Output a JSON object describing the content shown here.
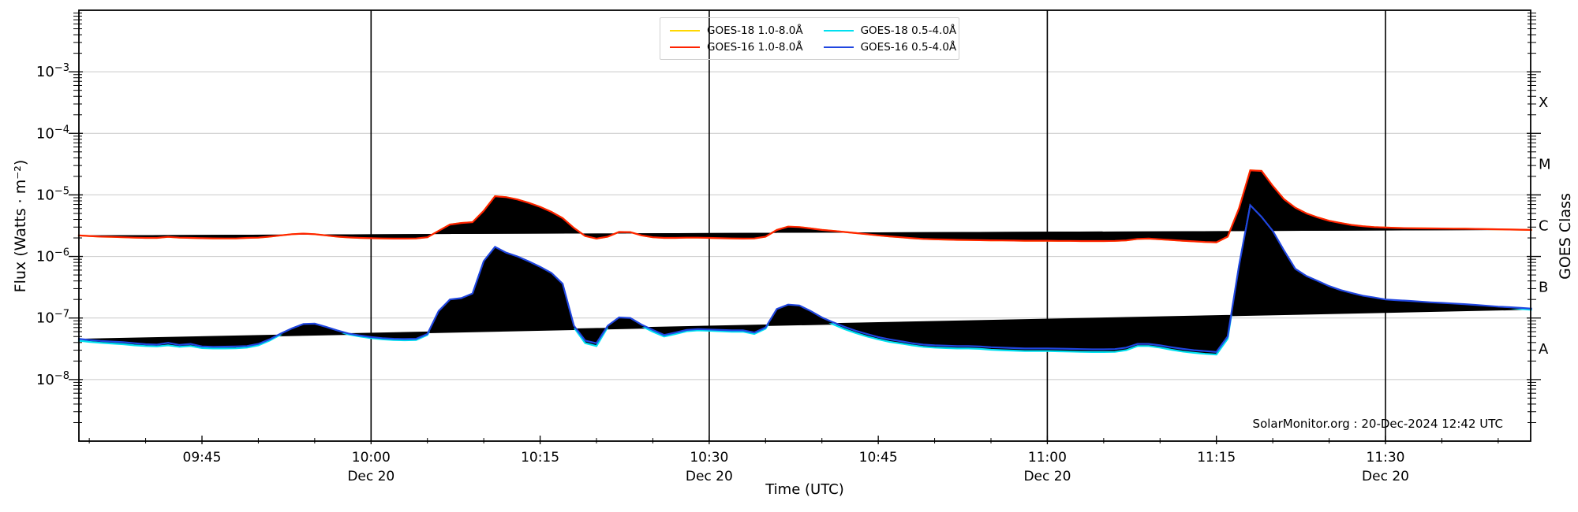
{
  "chart_data": {
    "type": "line",
    "xlabel": "Time (UTC)",
    "ylabel": "Flux (Watts · m⁻²)",
    "ylabel_right": "GOES Class",
    "annotation": "SolarMonitor.org : 20-Dec-2024 12:42 UTC",
    "x_start_time": "09:34",
    "x_end_time": "11:43",
    "step_minutes": 1,
    "x_ticks": [
      {
        "time": "09:45"
      },
      {
        "time": "10:00",
        "day": "Dec 20"
      },
      {
        "time": "10:15"
      },
      {
        "time": "10:30",
        "day": "Dec 20"
      },
      {
        "time": "10:45"
      },
      {
        "time": "11:00",
        "day": "Dec 20"
      },
      {
        "time": "11:15"
      },
      {
        "time": "11:30",
        "day": "Dec 20"
      }
    ],
    "x_minor_step_minutes": 5,
    "vertical_lines": [
      "10:00",
      "10:30",
      "11:00",
      "11:30"
    ],
    "y_log_top_exponent": -2,
    "y_log_bottom_exponent": -9,
    "y_major_tick_exponents": [
      -3,
      -4,
      -5,
      -6,
      -7,
      -8
    ],
    "goes_class_labels": [
      {
        "label": "X",
        "exponent": -3.5
      },
      {
        "label": "M",
        "exponent": -4.5
      },
      {
        "label": "C",
        "exponent": -5.5
      },
      {
        "label": "B",
        "exponent": -6.5
      },
      {
        "label": "A",
        "exponent": -7.5
      }
    ],
    "grid_color": "#c9c9c9",
    "axis_color": "#000000",
    "legend": [
      {
        "label": "GOES-18 1.0-8.0Å",
        "color": "#ffd700"
      },
      {
        "label": "GOES-16 1.0-8.0Å",
        "color": "#ff2200"
      },
      {
        "label": "GOES-18 0.5-4.0Å",
        "color": "#00e0f0"
      },
      {
        "label": "GOES-16 0.5-4.0Å",
        "color": "#2046e0"
      }
    ],
    "series": [
      {
        "name": "GOES-18 1.0-8.0Å",
        "color": "#ffd700",
        "values": [
          2.2e-06,
          2.15e-06,
          2.1e-06,
          2.08e-06,
          2.05e-06,
          2.02e-06,
          2e-06,
          2e-06,
          2.08e-06,
          2.02e-06,
          2e-06,
          1.98e-06,
          1.97e-06,
          1.96e-06,
          1.96e-06,
          2e-06,
          2.02e-06,
          2.1e-06,
          2.2e-06,
          2.3e-06,
          2.35e-06,
          2.3e-06,
          2.2e-06,
          2.1e-06,
          2.04e-06,
          2e-06,
          1.98e-06,
          1.96e-06,
          1.95e-06,
          1.95e-06,
          1.96e-06,
          2.05e-06,
          2.6e-06,
          3.3e-06,
          3.5e-06,
          3.6e-06,
          5.5e-06,
          9.5e-06,
          9.2e-06,
          8.4e-06,
          7.4e-06,
          6.4e-06,
          5.3e-06,
          4.2e-06,
          2.9e-06,
          2.15e-06,
          1.95e-06,
          2.1e-06,
          2.5e-06,
          2.48e-06,
          2.2e-06,
          2.05e-06,
          2e-06,
          2e-06,
          2.02e-06,
          2.02e-06,
          2e-06,
          1.98e-06,
          1.96e-06,
          1.95e-06,
          1.96e-06,
          2.1e-06,
          2.7e-06,
          3.05e-06,
          3e-06,
          2.85e-06,
          2.7e-06,
          2.6e-06,
          2.5e-06,
          2.4e-06,
          2.3e-06,
          2.2e-06,
          2.12e-06,
          2.05e-06,
          1.98e-06,
          1.93e-06,
          1.9e-06,
          1.88e-06,
          1.86e-06,
          1.85e-06,
          1.84e-06,
          1.83e-06,
          1.82e-06,
          1.81e-06,
          1.8e-06,
          1.8e-06,
          1.8e-06,
          1.79e-06,
          1.79e-06,
          1.78e-06,
          1.78e-06,
          1.78e-06,
          1.79e-06,
          1.82e-06,
          1.93e-06,
          1.95e-06,
          1.9e-06,
          1.85e-06,
          1.8e-06,
          1.76e-06,
          1.72e-06,
          1.7e-06,
          2.1e-06,
          6e-06,
          2.5e-05,
          2.45e-05,
          1.4e-05,
          8.5e-06,
          6.2e-06,
          5e-06,
          4.3e-06,
          3.8e-06,
          3.5e-06,
          3.25e-06,
          3.1e-06,
          3e-06,
          2.95e-06,
          2.9e-06,
          2.88e-06,
          2.86e-06,
          2.85e-06,
          2.84e-06,
          2.83e-06,
          2.82e-06,
          2.8e-06,
          2.78e-06,
          2.76e-06,
          2.74e-06,
          2.72e-06,
          2.7e-06
        ]
      },
      {
        "name": "GOES-16 1.0-8.0Å",
        "color": "#ff2200",
        "values": [
          2.2e-06,
          2.15e-06,
          2.1e-06,
          2.08e-06,
          2.05e-06,
          2.02e-06,
          2e-06,
          2e-06,
          2.08e-06,
          2.02e-06,
          2e-06,
          1.98e-06,
          1.97e-06,
          1.96e-06,
          1.96e-06,
          2e-06,
          2.02e-06,
          2.1e-06,
          2.2e-06,
          2.3e-06,
          2.35e-06,
          2.3e-06,
          2.2e-06,
          2.1e-06,
          2.04e-06,
          2e-06,
          1.98e-06,
          1.96e-06,
          1.95e-06,
          1.95e-06,
          1.96e-06,
          2.05e-06,
          2.6e-06,
          3.3e-06,
          3.5e-06,
          3.6e-06,
          5.5e-06,
          9.5e-06,
          9.2e-06,
          8.4e-06,
          7.4e-06,
          6.4e-06,
          5.3e-06,
          4.2e-06,
          2.9e-06,
          2.15e-06,
          1.95e-06,
          2.1e-06,
          2.5e-06,
          2.48e-06,
          2.2e-06,
          2.05e-06,
          2e-06,
          2e-06,
          2.02e-06,
          2.02e-06,
          2e-06,
          1.98e-06,
          1.96e-06,
          1.95e-06,
          1.96e-06,
          2.1e-06,
          2.7e-06,
          3.05e-06,
          3e-06,
          2.85e-06,
          2.7e-06,
          2.6e-06,
          2.5e-06,
          2.4e-06,
          2.3e-06,
          2.2e-06,
          2.12e-06,
          2.05e-06,
          1.98e-06,
          1.93e-06,
          1.9e-06,
          1.88e-06,
          1.86e-06,
          1.85e-06,
          1.84e-06,
          1.83e-06,
          1.82e-06,
          1.81e-06,
          1.8e-06,
          1.8e-06,
          1.8e-06,
          1.79e-06,
          1.79e-06,
          1.78e-06,
          1.78e-06,
          1.78e-06,
          1.79e-06,
          1.82e-06,
          1.93e-06,
          1.95e-06,
          1.9e-06,
          1.85e-06,
          1.8e-06,
          1.76e-06,
          1.72e-06,
          1.7e-06,
          2.1e-06,
          6e-06,
          2.5e-05,
          2.45e-05,
          1.4e-05,
          8.5e-06,
          6.2e-06,
          5e-06,
          4.3e-06,
          3.8e-06,
          3.5e-06,
          3.25e-06,
          3.1e-06,
          3e-06,
          2.95e-06,
          2.9e-06,
          2.88e-06,
          2.86e-06,
          2.85e-06,
          2.84e-06,
          2.83e-06,
          2.82e-06,
          2.8e-06,
          2.78e-06,
          2.76e-06,
          2.74e-06,
          2.72e-06,
          2.7e-06
        ]
      },
      {
        "name": "GOES-18 0.5-4.0Å",
        "color": "#00e0f0",
        "values": [
          4.3e-08,
          4.1e-08,
          3.95e-08,
          3.85e-08,
          3.75e-08,
          3.6e-08,
          3.5e-08,
          3.45e-08,
          3.6e-08,
          3.4e-08,
          3.5e-08,
          3.25e-08,
          3.2e-08,
          3.2e-08,
          3.22e-08,
          3.3e-08,
          3.6e-08,
          4.3e-08,
          5.4e-08,
          6.6e-08,
          7.8e-08,
          7.9e-08,
          7e-08,
          6.1e-08,
          5.4e-08,
          5e-08,
          4.7e-08,
          4.5e-08,
          4.4e-08,
          4.35e-08,
          4.4e-08,
          5.3e-08,
          1.27e-07,
          1.97e-07,
          2.07e-07,
          2.47e-07,
          8.3e-07,
          1.41e-06,
          1.13e-06,
          9.8e-07,
          8.1e-07,
          6.6e-07,
          5.2e-07,
          3.45e-07,
          7e-08,
          3.9e-08,
          3.5e-08,
          7.1e-08,
          9.8e-08,
          9.6e-08,
          7.4e-08,
          6e-08,
          5e-08,
          5.5e-08,
          6.1e-08,
          6.3e-08,
          6.2e-08,
          6.1e-08,
          6e-08,
          6e-08,
          5.5e-08,
          6.7e-08,
          1.36e-07,
          1.6e-07,
          1.55e-07,
          1.25e-07,
          9.6e-08,
          7.9e-08,
          6.6e-08,
          5.7e-08,
          5e-08,
          4.5e-08,
          4.1e-08,
          3.85e-08,
          3.6e-08,
          3.4e-08,
          3.3e-08,
          3.25e-08,
          3.2e-08,
          3.2e-08,
          3.15e-08,
          3.05e-08,
          3e-08,
          2.95e-08,
          2.9e-08,
          2.9e-08,
          2.9e-08,
          2.88e-08,
          2.85e-08,
          2.82e-08,
          2.8e-08,
          2.8e-08,
          2.82e-08,
          3e-08,
          3.5e-08,
          3.5e-08,
          3.3e-08,
          3.05e-08,
          2.85e-08,
          2.72e-08,
          2.62e-08,
          2.55e-08,
          4.6e-08,
          6.8e-07,
          6.7e-06,
          4.35e-06,
          2.55e-06,
          1.22e-06,
          6.1e-07,
          4.65e-07,
          3.85e-07,
          3.2e-07,
          2.75e-07,
          2.45e-07,
          2.22e-07,
          2.07e-07,
          1.93e-07,
          1.88e-07,
          1.83e-07,
          1.78e-07,
          1.73e-07,
          1.69e-07,
          1.65e-07,
          1.61e-07,
          1.56e-07,
          1.51e-07,
          1.47e-07,
          1.44e-07,
          1.4e-07,
          1.36e-07
        ]
      },
      {
        "name": "GOES-16 0.5-4.0Å",
        "color": "#2046e0",
        "values": [
          4.6e-08,
          4.4e-08,
          4.25e-08,
          4.15e-08,
          4.05e-08,
          3.9e-08,
          3.75e-08,
          3.7e-08,
          3.95e-08,
          3.65e-08,
          3.8e-08,
          3.45e-08,
          3.4e-08,
          3.42e-08,
          3.45e-08,
          3.5e-08,
          3.8e-08,
          4.5e-08,
          5.6e-08,
          6.8e-08,
          8e-08,
          8.1e-08,
          7.2e-08,
          6.3e-08,
          5.6e-08,
          5.2e-08,
          4.9e-08,
          4.7e-08,
          4.6e-08,
          4.55e-08,
          4.6e-08,
          5.5e-08,
          1.3e-07,
          2e-07,
          2.1e-07,
          2.5e-07,
          8.4e-07,
          1.43e-06,
          1.15e-06,
          1e-06,
          8.3e-07,
          6.8e-07,
          5.4e-07,
          3.6e-07,
          7.5e-08,
          4.3e-08,
          3.9e-08,
          7.5e-08,
          1.02e-07,
          1e-07,
          7.8e-08,
          6.4e-08,
          5.3e-08,
          5.8e-08,
          6.4e-08,
          6.6e-08,
          6.5e-08,
          6.4e-08,
          6.3e-08,
          6.3e-08,
          5.8e-08,
          7e-08,
          1.4e-07,
          1.65e-07,
          1.6e-07,
          1.3e-07,
          1.02e-07,
          8.5e-08,
          7.2e-08,
          6.2e-08,
          5.5e-08,
          4.9e-08,
          4.5e-08,
          4.2e-08,
          3.9e-08,
          3.7e-08,
          3.6e-08,
          3.55e-08,
          3.5e-08,
          3.5e-08,
          3.45e-08,
          3.35e-08,
          3.3e-08,
          3.25e-08,
          3.2e-08,
          3.2e-08,
          3.2e-08,
          3.18e-08,
          3.15e-08,
          3.12e-08,
          3.1e-08,
          3.1e-08,
          3.12e-08,
          3.3e-08,
          3.8e-08,
          3.8e-08,
          3.6e-08,
          3.35e-08,
          3.15e-08,
          3e-08,
          2.9e-08,
          2.8e-08,
          5e-08,
          7e-07,
          6.8e-06,
          4.4e-06,
          2.6e-06,
          1.25e-06,
          6.3e-07,
          4.8e-07,
          4e-07,
          3.3e-07,
          2.85e-07,
          2.55e-07,
          2.3e-07,
          2.15e-07,
          2e-07,
          1.95e-07,
          1.9e-07,
          1.85e-07,
          1.8e-07,
          1.76e-07,
          1.72e-07,
          1.68e-07,
          1.63e-07,
          1.58e-07,
          1.53e-07,
          1.5e-07,
          1.46e-07,
          1.42e-07
        ]
      }
    ]
  }
}
